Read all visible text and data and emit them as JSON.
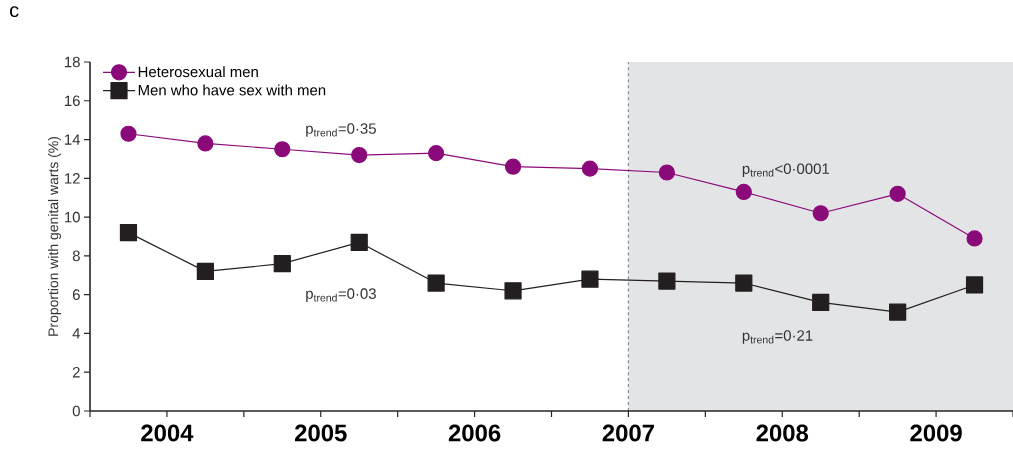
{
  "chart_data": {
    "type": "line",
    "title": "c",
    "ylabel": "Proportion with genital warts (%)",
    "x": [
      2003.75,
      2004.25,
      2004.75,
      2005.25,
      2005.75,
      2006.25,
      2006.75,
      2007.25,
      2007.75,
      2008.25,
      2008.75,
      2009.25
    ],
    "series": [
      {
        "name": "Heterosexual men",
        "color": "#8b0a7a",
        "marker": "circle",
        "values": [
          14.3,
          13.8,
          13.5,
          13.2,
          13.3,
          12.6,
          12.5,
          12.3,
          11.3,
          10.2,
          11.2,
          8.9
        ]
      },
      {
        "name": "Men who have sex with men",
        "color": "#231f20",
        "marker": "square",
        "values": [
          9.2,
          7.2,
          7.6,
          8.7,
          6.6,
          6.2,
          6.8,
          6.7,
          6.6,
          5.6,
          5.1,
          6.5
        ]
      }
    ],
    "xlim": [
      2003.5,
      2009.5
    ],
    "xticks": [
      {
        "value": 2003.5,
        "label": null
      },
      2004,
      {
        "value": 2004.5,
        "label": null
      },
      2005,
      {
        "value": 2005.5,
        "label": null
      },
      2006,
      {
        "value": 2006.5,
        "label": null
      },
      2007,
      {
        "value": 2007.5,
        "label": null
      },
      2008,
      {
        "value": 2008.5,
        "label": null
      },
      2009,
      {
        "value": 2009.5,
        "label": null
      }
    ],
    "ylim": [
      0,
      18
    ],
    "yticks": [
      0,
      2,
      4,
      6,
      8,
      10,
      12,
      14,
      16,
      18
    ],
    "bands": [
      {
        "axis": "x",
        "from": 2007,
        "to": 2009.5,
        "color": "#e3e4e6"
      }
    ],
    "ref_lines": [
      {
        "axis": "x",
        "value": 2007,
        "color": "#7f8c95",
        "line_style": "dashed"
      }
    ],
    "annotations": [
      "p$_{trend}$=0·35",
      "p$_{trend}$=0·03",
      "p$_{trend}$<0·0001",
      "p$_{trend}$=0·21"
    ],
    "legend": "top left"
  }
}
